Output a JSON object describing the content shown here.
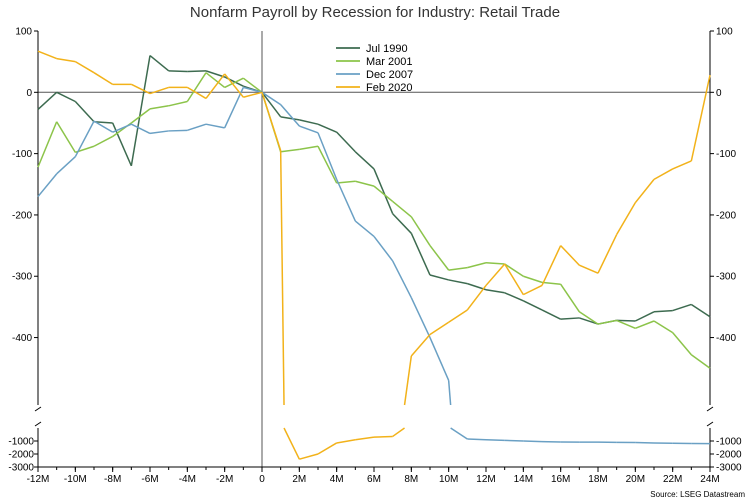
{
  "chart_data": {
    "type": "line",
    "title": "Nonfarm Payroll by Recession for Industry: Retail Trade",
    "source": "Source: LSEG Datastream",
    "x": [
      -12,
      -11,
      -10,
      -9,
      -8,
      -7,
      -6,
      -5,
      -4,
      -3,
      -2,
      -1,
      0,
      1,
      2,
      3,
      4,
      5,
      6,
      7,
      8,
      9,
      10,
      11,
      12,
      13,
      14,
      15,
      16,
      17,
      18,
      19,
      20,
      21,
      22,
      23,
      24
    ],
    "x_tick_labels": [
      {
        "x": -12,
        "label": "-12M"
      },
      {
        "x": -10,
        "label": "-10M"
      },
      {
        "x": -8,
        "label": "-8M"
      },
      {
        "x": -6,
        "label": "-6M"
      },
      {
        "x": -4,
        "label": "-4M"
      },
      {
        "x": -2,
        "label": "-2M"
      },
      {
        "x": 0,
        "label": "0"
      },
      {
        "x": 2,
        "label": "2M"
      },
      {
        "x": 4,
        "label": "4M"
      },
      {
        "x": 6,
        "label": "6M"
      },
      {
        "x": 8,
        "label": "8M"
      },
      {
        "x": 10,
        "label": "10M"
      },
      {
        "x": 12,
        "label": "12M"
      },
      {
        "x": 14,
        "label": "14M"
      },
      {
        "x": 16,
        "label": "16M"
      },
      {
        "x": 18,
        "label": "18M"
      },
      {
        "x": 20,
        "label": "20M"
      },
      {
        "x": 22,
        "label": "22M"
      },
      {
        "x": 24,
        "label": "24M"
      }
    ],
    "upper_y_ticks": [
      {
        "value": 100,
        "label": "100"
      },
      {
        "value": 0,
        "label": "0"
      },
      {
        "value": -100,
        "label": "-100"
      },
      {
        "value": -200,
        "label": "-200"
      },
      {
        "value": -300,
        "label": "-300"
      },
      {
        "value": -400,
        "label": "-400"
      }
    ],
    "lower_y_ticks": [
      {
        "value": -1000,
        "label": "-1000"
      },
      {
        "value": -2000,
        "label": "-2000"
      },
      {
        "value": -3000,
        "label": "-3000"
      }
    ],
    "upper_ylim": [
      -510,
      100
    ],
    "lower_ylim": [
      -3000,
      0
    ],
    "axis_break": true,
    "legend_position": "top-center",
    "series": [
      {
        "name": "Jul 1990",
        "color": "#3d6b50",
        "values": [
          -28,
          0,
          -15,
          -48,
          -50,
          -120,
          60,
          35,
          34,
          35,
          25,
          10,
          0,
          -40,
          -45,
          -52,
          -65,
          -97,
          -125,
          -198,
          -230,
          -298,
          -306,
          -312,
          -322,
          -327,
          -340,
          -355,
          -370,
          -368,
          -378,
          -372,
          -373,
          -358,
          -356,
          -346,
          -366
        ]
      },
      {
        "name": "Mar 2001",
        "color": "#8cc44a",
        "values": [
          -122,
          -48,
          -98,
          -88,
          -72,
          -50,
          -27,
          -22,
          -15,
          32,
          8,
          23,
          0,
          -97,
          -93,
          -88,
          -148,
          -145,
          -153,
          -178,
          -203,
          -250,
          -290,
          -286,
          -278,
          -280,
          -300,
          -310,
          -313,
          -358,
          -378,
          -372,
          -385,
          -373,
          -392,
          -428,
          -450
        ]
      },
      {
        "name": "Dec 2007",
        "color": "#6aa0c4",
        "values": [
          -170,
          -133,
          -105,
          -47,
          -65,
          -52,
          -67,
          -63,
          -62,
          -52,
          -58,
          8,
          0,
          -20,
          -55,
          -66,
          -142,
          -210,
          -235,
          -275,
          -335,
          -400,
          -470,
          -850,
          -900,
          -950,
          -1000,
          -1050,
          -1080,
          -1085,
          -1090,
          -1110,
          -1115,
          -1150,
          -1170,
          -1190,
          -1200
        ]
      },
      {
        "name": "Feb 2020",
        "color": "#f2b21a",
        "values": [
          67,
          55,
          50,
          32,
          13,
          13,
          -2,
          8,
          8,
          -10,
          30,
          -8,
          0,
          -95,
          -2400,
          -2000,
          -1150,
          -900,
          -700,
          -650,
          -430,
          -395,
          -375,
          -355,
          -315,
          -280,
          -330,
          -315,
          -250,
          -282,
          -295,
          -232,
          -180,
          -142,
          -125,
          -112,
          28
        ]
      }
    ]
  }
}
